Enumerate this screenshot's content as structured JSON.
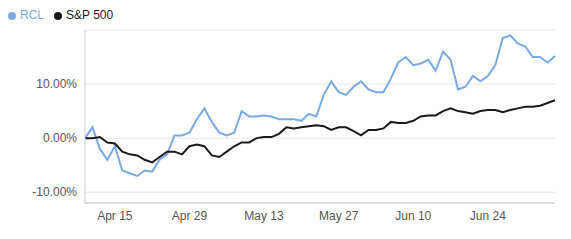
{
  "chart_data": {
    "type": "line",
    "categories": [
      null,
      null,
      null,
      null,
      "Apr 15",
      null,
      null,
      null,
      null,
      null,
      null,
      null,
      null,
      null,
      "Apr 29",
      null,
      null,
      null,
      null,
      null,
      null,
      null,
      null,
      null,
      "May 13",
      null,
      null,
      null,
      null,
      null,
      null,
      null,
      null,
      null,
      "May 27",
      null,
      null,
      null,
      null,
      null,
      null,
      null,
      null,
      null,
      "Jun 10",
      null,
      null,
      null,
      null,
      null,
      null,
      null,
      null,
      null,
      "Jun 24",
      null,
      null,
      null,
      null,
      null,
      null,
      null,
      null,
      null
    ],
    "series": [
      {
        "name": "RCL",
        "color": "#7aaae0",
        "values": [
          0,
          2,
          -2,
          -4,
          -1.5,
          -6,
          -6.5,
          -7,
          -6,
          -6.2,
          -4,
          -3,
          0.5,
          0.5,
          1,
          3.5,
          5.5,
          3,
          1,
          0.5,
          1,
          5,
          4,
          4,
          4.2,
          4,
          3.5,
          3.5,
          3.5,
          3.2,
          4.5,
          4,
          8,
          10.5,
          8.5,
          8,
          9.5,
          10.5,
          9,
          8.5,
          8.5,
          11,
          14,
          15,
          13.5,
          13.8,
          14.5,
          12.5,
          16,
          14.5,
          9,
          9.5,
          11.5,
          10.5,
          11.5,
          13.5,
          18.5,
          19,
          17.5,
          17,
          15,
          15,
          14,
          15.2
        ]
      },
      {
        "name": "S&P 500",
        "color": "#1a1a1a",
        "values": [
          0,
          0,
          0.2,
          -0.8,
          -1,
          -2.5,
          -3,
          -3.2,
          -4,
          -4.5,
          -3.5,
          -2.5,
          -2.5,
          -3,
          -1.5,
          -1.2,
          -1.5,
          -3.2,
          -3.5,
          -2.5,
          -1.5,
          -0.8,
          -0.8,
          0,
          0.2,
          0.2,
          0.8,
          2,
          1.8,
          2,
          2.2,
          2.4,
          2.2,
          1.5,
          2,
          2,
          1.3,
          0.5,
          1.5,
          1.5,
          1.8,
          3,
          2.8,
          2.8,
          3.2,
          4,
          4.2,
          4.2,
          5,
          5.5,
          5,
          4.8,
          4.5,
          5,
          5.2,
          5.2,
          4.8,
          5.2,
          5.5,
          5.8,
          5.8,
          6,
          6.5,
          7
        ]
      }
    ],
    "ylim": [
      -12,
      20
    ],
    "yticks": [
      {
        "value": -10,
        "label": "-10.00%"
      },
      {
        "value": 0,
        "label": "0.00%"
      },
      {
        "value": 10,
        "label": "10.00%"
      }
    ],
    "grid": true,
    "legend": "top-left"
  }
}
